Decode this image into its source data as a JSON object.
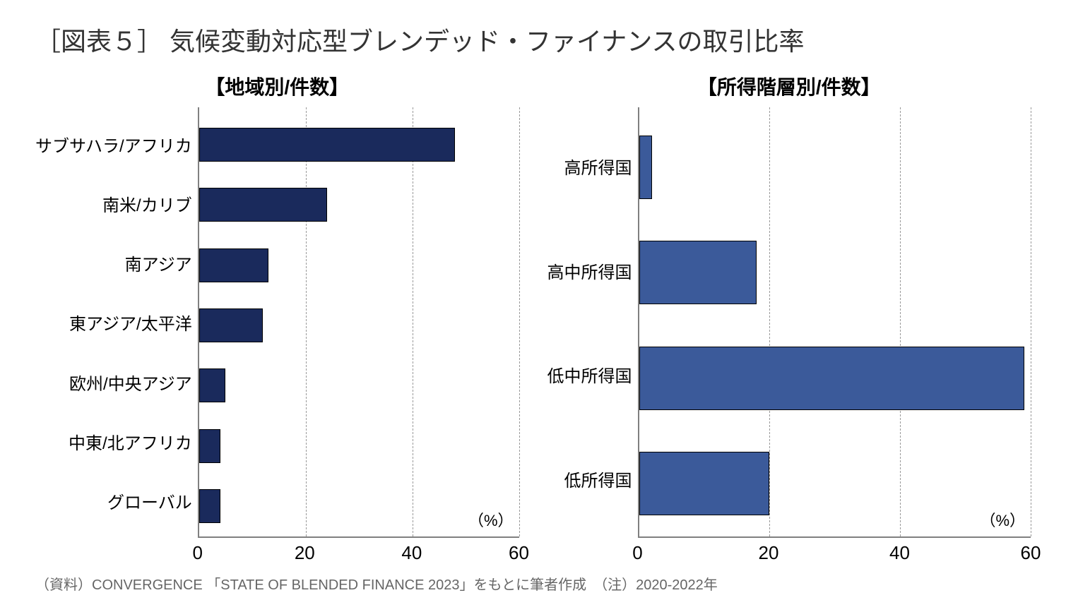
{
  "title": "［図表５］ 気候変動対応型ブレンデッド・ファイナンスの取引比率",
  "source": "（資料）CONVERGENCE 「STATE OF BLENDED FINANCE 2023」をもとに筆者作成　（注）2020-2022年",
  "left_chart": {
    "type": "bar-horizontal",
    "subtitle": "【地域別/件数】",
    "unit": "（%）",
    "xlim": [
      0,
      60
    ],
    "xticks": [
      0,
      20,
      40,
      60
    ],
    "bar_color": "#1a2a5c",
    "border_color": "#000000",
    "grid_color": "#999999",
    "categories": [
      {
        "label": "サブサハラ/アフリカ",
        "value": 48
      },
      {
        "label": "南米/カリブ",
        "value": 24
      },
      {
        "label": "南アジア",
        "value": 13
      },
      {
        "label": "東アジア/太平洋",
        "value": 12
      },
      {
        "label": "欧州/中央アジア",
        "value": 5
      },
      {
        "label": "中東/北アフリカ",
        "value": 4
      },
      {
        "label": "グローバル",
        "value": 4
      }
    ]
  },
  "right_chart": {
    "type": "bar-horizontal",
    "subtitle": "【所得階層別/件数】",
    "unit": "（%）",
    "xlim": [
      0,
      60
    ],
    "xticks": [
      0,
      20,
      40,
      60
    ],
    "bar_color": "#3b5a9a",
    "border_color": "#000000",
    "grid_color": "#999999",
    "categories": [
      {
        "label": "高所得国",
        "value": 2
      },
      {
        "label": "高中所得国",
        "value": 18
      },
      {
        "label": "低中所得国",
        "value": 59
      },
      {
        "label": "低所得国",
        "value": 20
      }
    ]
  }
}
